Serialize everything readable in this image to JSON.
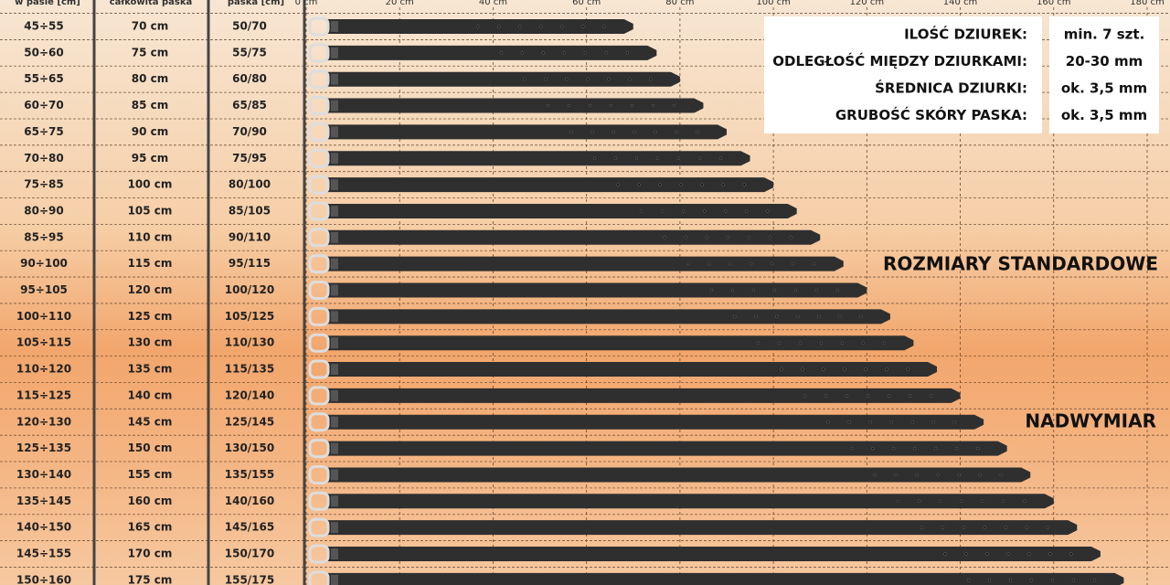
{
  "chart_data": {
    "type": "belt",
    "headers": [
      "w pasie [cm]",
      "całkowita paska",
      "paska [cm]"
    ],
    "waist": [
      "45÷55",
      "50÷60",
      "55÷65",
      "60÷70",
      "65÷75",
      "70÷80",
      "75÷85",
      "80÷90",
      "85÷95",
      "90÷100",
      "95÷105",
      "100÷110",
      "105÷115",
      "110÷120",
      "115÷125",
      "120÷130",
      "125÷135",
      "130÷140",
      "135÷145",
      "140÷150",
      "145÷155",
      "150÷160"
    ],
    "values": [
      70,
      75,
      80,
      85,
      90,
      95,
      100,
      105,
      110,
      115,
      120,
      125,
      130,
      135,
      140,
      145,
      150,
      155,
      160,
      165,
      170,
      175
    ],
    "value_labels": [
      "70 cm",
      "75 cm",
      "80 cm",
      "85 cm",
      "90 cm",
      "95 cm",
      "100 cm",
      "105 cm",
      "110 cm",
      "115 cm",
      "120 cm",
      "125 cm",
      "130 cm",
      "135 cm",
      "140 cm",
      "145 cm",
      "150 cm",
      "155 cm",
      "160 cm",
      "165 cm",
      "170 cm",
      "175 cm"
    ],
    "adjust": [
      "50/70",
      "55/75",
      "60/80",
      "65/85",
      "70/90",
      "75/95",
      "80/100",
      "85/105",
      "90/110",
      "95/115",
      "100/120",
      "105/125",
      "110/130",
      "115/135",
      "120/140",
      "125/145",
      "130/150",
      "135/155",
      "140/160",
      "145/165",
      "150/170",
      "155/175"
    ],
    "xlim": [
      0,
      180
    ],
    "xticks": [
      {
        "value": 0,
        "label": "0 cm"
      },
      {
        "value": 20,
        "label": "20 cm"
      },
      {
        "value": 40,
        "label": "40 cm"
      },
      {
        "value": 60,
        "label": "60 cm"
      },
      {
        "value": 80,
        "label": "80 cm"
      },
      {
        "value": 100,
        "label": "100 cm"
      },
      {
        "value": 120,
        "label": "120 cm"
      },
      {
        "value": 140,
        "label": "140 cm"
      },
      {
        "value": 160,
        "label": "160 cm"
      },
      {
        "value": 180,
        "label": "180 cm"
      }
    ],
    "grid": true,
    "color": "#2f2f2f",
    "specs": [
      {
        "label": "ILOŚĆ DZIUREK:",
        "value": "min. 7 szt."
      },
      {
        "label": "ODLEGŁOŚĆ MIĘDZY DZIURKAMI:",
        "value": "20-30 mm"
      },
      {
        "label": "ŚREDNICA DZIURKI:",
        "value": "ok. 3,5 mm"
      },
      {
        "label": "GRUBOŚĆ SKÓRY PASKA:",
        "value": "ok. 3,5 mm"
      }
    ],
    "annotations": [
      "ROZMIARY STANDARDOWE",
      "NADWYMIAR"
    ]
  }
}
